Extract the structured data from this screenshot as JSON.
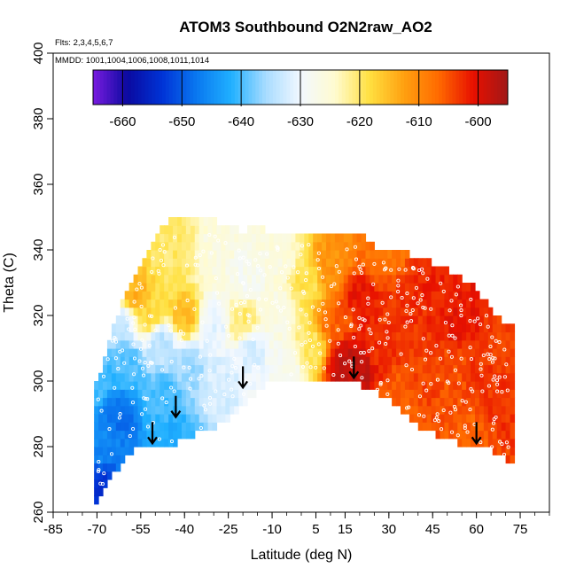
{
  "chart_data": {
    "type": "heatmap",
    "title": "ATOM3 Southbound O2N2raw_AO2",
    "subtitle_flights": "Flts: 2,3,4,5,6,7",
    "subtitle_dates": "MMDD: 1001,1004,1006,1008,1011,1014",
    "xlabel": "Latitude (deg N)",
    "ylabel": "Theta (C)",
    "xlim": [
      -85,
      85
    ],
    "ylim": [
      260,
      400
    ],
    "x_ticks": [
      -85,
      -70,
      -55,
      -40,
      -25,
      -10,
      5,
      15,
      30,
      45,
      60,
      75
    ],
    "x_tick_labels": [
      "-85",
      "-70",
      "-55",
      "-40",
      "-25",
      "-10",
      "5",
      "15",
      "30",
      "45",
      "60",
      "75"
    ],
    "y_ticks": [
      260,
      280,
      300,
      320,
      340,
      360,
      380,
      400
    ],
    "y_tick_labels": [
      "260",
      "280",
      "300",
      "320",
      "340",
      "360",
      "380",
      "400"
    ],
    "colorbar": {
      "range": [
        -665,
        -595
      ],
      "ticks": [
        -660,
        -650,
        -640,
        -630,
        -620,
        -610,
        -600
      ],
      "tick_labels": [
        "-660",
        "-650",
        "-640",
        "-630",
        "-620",
        "-610",
        "-600"
      ],
      "colors": [
        "#7a1be0",
        "#0a0aa0",
        "#0033d6",
        "#0a78f0",
        "#20b0ff",
        "#a8dcff",
        "#f2f8ff",
        "#fffbd0",
        "#ffe040",
        "#ffa010",
        "#ff6a00",
        "#e81000",
        "#a01818"
      ]
    },
    "arrows": [
      {
        "lat": -51,
        "theta": 281
      },
      {
        "lat": -43,
        "theta": 289
      },
      {
        "lat": -20,
        "theta": 298
      },
      {
        "lat": 18,
        "theta": 301
      },
      {
        "lat": 60,
        "theta": 281
      }
    ],
    "domain_profile": {
      "lat": [
        -71,
        -68,
        -64,
        -60,
        -55,
        -50,
        -45,
        -40,
        -35,
        -30,
        -25,
        -20,
        -15,
        -10,
        0,
        10,
        15,
        20,
        25,
        30,
        35,
        40,
        45,
        50,
        55,
        60,
        65,
        70,
        72
      ],
      "theta_bottom": [
        262,
        266,
        272,
        277,
        281,
        279,
        280,
        283,
        284,
        286,
        288,
        293,
        297,
        300,
        300,
        300,
        300,
        299,
        297,
        294,
        290,
        286,
        284,
        282,
        281,
        280,
        279,
        276,
        276
      ],
      "theta_top": [
        298,
        305,
        318,
        328,
        335,
        344,
        349,
        349,
        349,
        349,
        347,
        346,
        347,
        345,
        345,
        344,
        345,
        346,
        341,
        339,
        339,
        338,
        336,
        334,
        331,
        328,
        322,
        318,
        318
      ]
    },
    "field_anchors": [
      {
        "lat": -70,
        "theta": 268,
        "value": -654
      },
      {
        "lat": -68,
        "theta": 280,
        "value": -646
      },
      {
        "lat": -72,
        "theta": 300,
        "value": -640
      },
      {
        "lat": -62,
        "theta": 290,
        "value": -648
      },
      {
        "lat": -60,
        "theta": 305,
        "value": -640
      },
      {
        "lat": -62,
        "theta": 318,
        "value": -634
      },
      {
        "lat": -57,
        "theta": 326,
        "value": -614
      },
      {
        "lat": -52,
        "theta": 320,
        "value": -618
      },
      {
        "lat": -48,
        "theta": 312,
        "value": -634
      },
      {
        "lat": -47,
        "theta": 295,
        "value": -640
      },
      {
        "lat": -44,
        "theta": 283,
        "value": -642
      },
      {
        "lat": -40,
        "theta": 320,
        "value": -615
      },
      {
        "lat": -38,
        "theta": 304,
        "value": -636
      },
      {
        "lat": -42,
        "theta": 340,
        "value": -620
      },
      {
        "lat": -30,
        "theta": 340,
        "value": -626
      },
      {
        "lat": -30,
        "theta": 318,
        "value": -631
      },
      {
        "lat": -28,
        "theta": 300,
        "value": -632
      },
      {
        "lat": -20,
        "theta": 318,
        "value": -620
      },
      {
        "lat": -17,
        "theta": 310,
        "value": -632
      },
      {
        "lat": -18,
        "theta": 332,
        "value": -628
      },
      {
        "lat": -8,
        "theta": 338,
        "value": -626
      },
      {
        "lat": -8,
        "theta": 320,
        "value": -627
      },
      {
        "lat": -5,
        "theta": 305,
        "value": -628
      },
      {
        "lat": 2,
        "theta": 330,
        "value": -619
      },
      {
        "lat": 3,
        "theta": 310,
        "value": -620
      },
      {
        "lat": 10,
        "theta": 335,
        "value": -611
      },
      {
        "lat": 12,
        "theta": 318,
        "value": -606
      },
      {
        "lat": 15,
        "theta": 305,
        "value": -597
      },
      {
        "lat": 20,
        "theta": 305,
        "value": -597
      },
      {
        "lat": 20,
        "theta": 325,
        "value": -601
      },
      {
        "lat": 25,
        "theta": 310,
        "value": -603
      },
      {
        "lat": 28,
        "theta": 340,
        "value": -608
      },
      {
        "lat": 32,
        "theta": 295,
        "value": -606
      },
      {
        "lat": 35,
        "theta": 320,
        "value": -603
      },
      {
        "lat": 42,
        "theta": 300,
        "value": -604
      },
      {
        "lat": 45,
        "theta": 330,
        "value": -602
      },
      {
        "lat": 52,
        "theta": 300,
        "value": -605
      },
      {
        "lat": 55,
        "theta": 320,
        "value": -601
      },
      {
        "lat": 62,
        "theta": 300,
        "value": -603
      },
      {
        "lat": 60,
        "theta": 285,
        "value": -606
      },
      {
        "lat": 68,
        "theta": 290,
        "value": -603
      },
      {
        "lat": 68,
        "theta": 312,
        "value": -604
      },
      {
        "lat": 30,
        "theta": 288,
        "value": -608
      }
    ]
  }
}
